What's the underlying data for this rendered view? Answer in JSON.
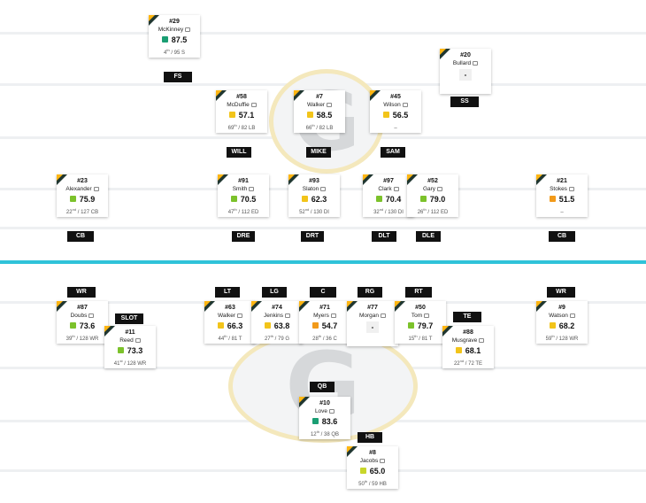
{
  "colors": {
    "team_primary": "#203731",
    "team_accent": "#ffb612",
    "line_of_scrimmage": "#2fc3d9",
    "position_tag": "#111111"
  },
  "grade_colors": {
    "green": "#1a9e73",
    "lime": "#7cc22b",
    "yellow": "#f2c41a",
    "orange": "#f29a1a"
  },
  "logo": "team-logo-g",
  "defense": [
    {
      "id": "mckinney",
      "jersey": "#29",
      "name": "McKinney",
      "grade": "87.5",
      "color": "#1a9e73",
      "rank": "4",
      "sup": "th",
      "total": " / 95 S",
      "pos": "FS"
    },
    {
      "id": "bullard",
      "jersey": "#20",
      "name": "Bullard",
      "grade": "-",
      "color": "",
      "rank": "",
      "sup": "",
      "total": "",
      "pos": "SS"
    },
    {
      "id": "mcduffie",
      "jersey": "#58",
      "name": "McDuffie",
      "grade": "57.1",
      "color": "#f2c41a",
      "rank": "69",
      "sup": "th",
      "total": " / 82 LB",
      "pos": "WILL"
    },
    {
      "id": "walker-lb",
      "jersey": "#7",
      "name": "Walker",
      "grade": "58.5",
      "color": "#f2c41a",
      "rank": "66",
      "sup": "th",
      "total": " / 82 LB",
      "pos": "MIKE"
    },
    {
      "id": "wilson",
      "jersey": "#45",
      "name": "Wilson",
      "grade": "56.5",
      "color": "#f2c41a",
      "rank": "–",
      "sup": "",
      "total": "",
      "pos": "SAM"
    },
    {
      "id": "alexander",
      "jersey": "#23",
      "name": "Alexander",
      "grade": "75.9",
      "color": "#7cc22b",
      "rank": "22",
      "sup": "nd",
      "total": " / 127 CB",
      "pos": "CB"
    },
    {
      "id": "smith",
      "jersey": "#91",
      "name": "Smith",
      "grade": "70.5",
      "color": "#7cc22b",
      "rank": "47",
      "sup": "th",
      "total": " / 112 ED",
      "pos": "DRE"
    },
    {
      "id": "slaton",
      "jersey": "#93",
      "name": "Slaton",
      "grade": "62.3",
      "color": "#f2c41a",
      "rank": "52",
      "sup": "nd",
      "total": " / 130 DI",
      "pos": "DRT"
    },
    {
      "id": "clark",
      "jersey": "#97",
      "name": "Clark",
      "grade": "70.4",
      "color": "#7cc22b",
      "rank": "32",
      "sup": "nd",
      "total": " / 130 DI",
      "pos": "DLT"
    },
    {
      "id": "gary",
      "jersey": "#52",
      "name": "Gary",
      "grade": "79.0",
      "color": "#7cc22b",
      "rank": "26",
      "sup": "th",
      "total": " / 112 ED",
      "pos": "DLE"
    },
    {
      "id": "stokes",
      "jersey": "#21",
      "name": "Stokes",
      "grade": "51.5",
      "color": "#f29a1a",
      "rank": "–",
      "sup": "",
      "total": "",
      "pos": "CB"
    }
  ],
  "offense": [
    {
      "id": "doubs",
      "jersey": "#87",
      "name": "Doubs",
      "grade": "73.6",
      "color": "#7cc22b",
      "rank": "39",
      "sup": "th",
      "total": " / 128 WR",
      "pos": "WR"
    },
    {
      "id": "reed",
      "jersey": "#11",
      "name": "Reed",
      "grade": "73.3",
      "color": "#7cc22b",
      "rank": "41",
      "sup": "st",
      "total": " / 128 WR",
      "pos": "SLOT"
    },
    {
      "id": "walker-lt",
      "jersey": "#63",
      "name": "Walker",
      "grade": "66.3",
      "color": "#f2c41a",
      "rank": "44",
      "sup": "th",
      "total": " / 81 T",
      "pos": "LT"
    },
    {
      "id": "jenkins",
      "jersey": "#74",
      "name": "Jenkins",
      "grade": "63.8",
      "color": "#f2c41a",
      "rank": "27",
      "sup": "th",
      "total": " / 79 G",
      "pos": "LG"
    },
    {
      "id": "myers",
      "jersey": "#71",
      "name": "Myers",
      "grade": "54.7",
      "color": "#f29a1a",
      "rank": "28",
      "sup": "th",
      "total": " / 36 C",
      "pos": "C"
    },
    {
      "id": "morgan",
      "jersey": "#77",
      "name": "Morgan",
      "grade": "-",
      "color": "",
      "rank": "",
      "sup": "",
      "total": "",
      "pos": "RG"
    },
    {
      "id": "tom",
      "jersey": "#50",
      "name": "Tom",
      "grade": "79.7",
      "color": "#7cc22b",
      "rank": "15",
      "sup": "th",
      "total": " / 81 T",
      "pos": "RT"
    },
    {
      "id": "musgrave",
      "jersey": "#88",
      "name": "Musgrave",
      "grade": "68.1",
      "color": "#f2c41a",
      "rank": "22",
      "sup": "nd",
      "total": " / 72 TE",
      "pos": "TE"
    },
    {
      "id": "watson",
      "jersey": "#9",
      "name": "Watson",
      "grade": "68.2",
      "color": "#f2c41a",
      "rank": "59",
      "sup": "th",
      "total": " / 128 WR",
      "pos": "WR"
    },
    {
      "id": "love",
      "jersey": "#10",
      "name": "Love",
      "grade": "83.6",
      "color": "#1a9e73",
      "rank": "12",
      "sup": "th",
      "total": " / 38 QB",
      "pos": "QB"
    },
    {
      "id": "jacobs",
      "jersey": "#8",
      "name": "Jacobs",
      "grade": "65.0",
      "color": "#c8d62a",
      "rank": "50",
      "sup": "th",
      "total": " / 59 HB",
      "pos": "HB"
    }
  ]
}
